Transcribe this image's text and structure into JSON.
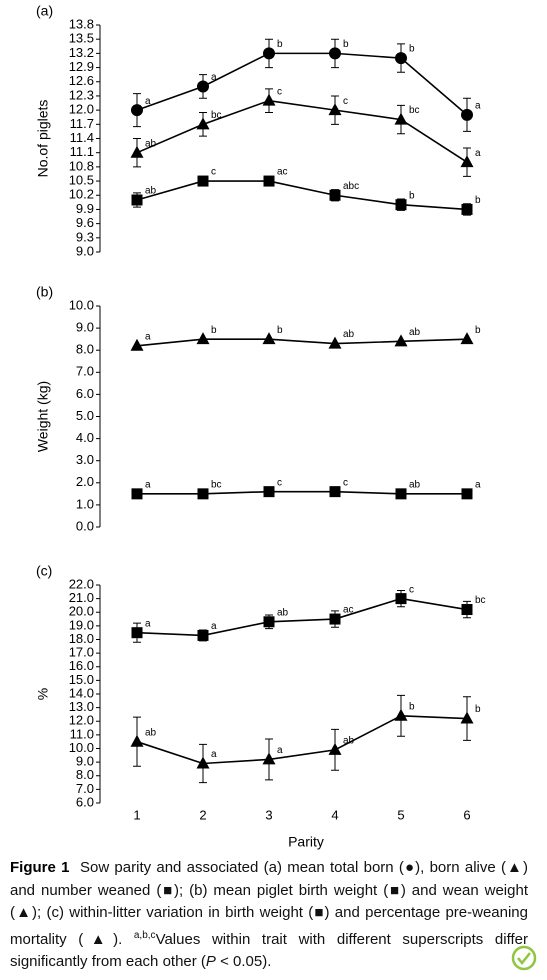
{
  "chart_data": [
    {
      "type": "line",
      "panel_label": "(a)",
      "y_label": "No.of piglets",
      "categories": [
        null,
        null,
        null,
        null,
        null,
        null
      ],
      "ylim": [
        9,
        13.8
      ],
      "yticks": [
        {
          "value": 9,
          "label": "9.0"
        },
        9.3,
        9.6,
        9.9,
        10.2,
        10.5,
        10.8,
        11.1,
        11.4,
        11.7,
        {
          "value": 12,
          "label": "12.0"
        },
        12.3,
        12.6,
        12.9,
        13.2,
        13.5,
        13.8
      ],
      "series": [
        {
          "marker": "circle",
          "color": "#000000",
          "values": [
            12.0,
            12.5,
            13.2,
            13.2,
            13.1,
            11.9
          ],
          "errors": [
            0.35,
            0.25,
            0.3,
            0.3,
            0.3,
            0.35
          ],
          "letters": [
            "a",
            "a",
            "b",
            "b",
            "b",
            "a"
          ]
        },
        {
          "marker": "triangle",
          "color": "#000000",
          "values": [
            11.1,
            11.7,
            12.2,
            12.0,
            11.8,
            10.9
          ],
          "errors": [
            0.3,
            0.25,
            0.25,
            0.3,
            0.3,
            0.3
          ],
          "letters": [
            "ab",
            "bc",
            "c",
            "c",
            "bc",
            "a"
          ]
        },
        {
          "marker": "square",
          "color": "#000000",
          "values": [
            10.1,
            10.5,
            10.5,
            10.2,
            10.0,
            9.9
          ],
          "errors": [
            0.15,
            0.1,
            0.1,
            0.12,
            0.12,
            0.12
          ],
          "letters": [
            "ab",
            "c",
            "ac",
            "abc",
            "b",
            "b"
          ]
        }
      ]
    },
    {
      "type": "line",
      "panel_label": "(b)",
      "y_label": "Weight (kg)",
      "categories": [
        null,
        null,
        null,
        null,
        null,
        null
      ],
      "ylim": [
        0,
        10
      ],
      "yticks": [
        {
          "value": 0,
          "label": "0.0"
        },
        {
          "value": 1,
          "label": "1.0"
        },
        {
          "value": 2,
          "label": "2.0"
        },
        {
          "value": 3,
          "label": "3.0"
        },
        {
          "value": 4,
          "label": "4.0"
        },
        {
          "value": 5,
          "label": "5.0"
        },
        {
          "value": 6,
          "label": "6.0"
        },
        {
          "value": 7,
          "label": "7.0"
        },
        {
          "value": 8,
          "label": "8.0"
        },
        {
          "value": 9,
          "label": "9.0"
        },
        {
          "value": 10,
          "label": "10.0"
        }
      ],
      "series": [
        {
          "marker": "triangle",
          "color": "#000000",
          "values": [
            8.2,
            8.5,
            8.5,
            8.3,
            8.4,
            8.5
          ],
          "letters": [
            "a",
            "b",
            "b",
            "ab",
            "ab",
            "b"
          ]
        },
        {
          "marker": "square",
          "color": "#000000",
          "values": [
            1.5,
            1.5,
            1.6,
            1.6,
            1.5,
            1.5
          ],
          "letters": [
            "a",
            "bc",
            "c",
            "c",
            "ab",
            "a"
          ]
        }
      ]
    },
    {
      "type": "line",
      "panel_label": "(c)",
      "y_label": "%",
      "x_label": "Parity",
      "categories": [
        "1",
        "2",
        "3",
        "4",
        "5",
        "6"
      ],
      "ylim": [
        6,
        22
      ],
      "yticks": [
        {
          "value": 6,
          "label": "6.0"
        },
        {
          "value": 7,
          "label": "7.0"
        },
        {
          "value": 8,
          "label": "8.0"
        },
        {
          "value": 9,
          "label": "9.0"
        },
        {
          "value": 10,
          "label": "10.0"
        },
        {
          "value": 11,
          "label": "11.0"
        },
        {
          "value": 12,
          "label": "12.0"
        },
        {
          "value": 13,
          "label": "13.0"
        },
        {
          "value": 14,
          "label": "14.0"
        },
        {
          "value": 15,
          "label": "15.0"
        },
        {
          "value": 16,
          "label": "16.0"
        },
        {
          "value": 17,
          "label": "17.0"
        },
        {
          "value": 18,
          "label": "18.0"
        },
        {
          "value": 19,
          "label": "19.0"
        },
        {
          "value": 20,
          "label": "20.0"
        },
        {
          "value": 21,
          "label": "21.0"
        },
        {
          "value": 22,
          "label": "22.0"
        }
      ],
      "series": [
        {
          "marker": "square",
          "color": "#000000",
          "values": [
            18.5,
            18.3,
            19.3,
            19.5,
            21.0,
            20.2
          ],
          "errors": [
            0.7,
            0.4,
            0.5,
            0.6,
            0.6,
            0.6
          ],
          "letters": [
            "a",
            "a",
            "ab",
            "ac",
            "c",
            "bc"
          ]
        },
        {
          "marker": "triangle",
          "color": "#000000",
          "values": [
            10.5,
            8.9,
            9.2,
            9.9,
            12.4,
            12.2
          ],
          "errors": [
            1.8,
            1.4,
            1.5,
            1.5,
            1.5,
            1.6
          ],
          "letters": [
            "ab",
            "a",
            "a",
            "ab",
            "b",
            "b"
          ]
        }
      ]
    }
  ],
  "caption": {
    "label": "Figure 1",
    "text": "Sow parity and associated (a) mean total born (●), born alive (▲) and number weaned (■); (b) mean piglet birth weight (■) and wean weight (▲); (c) within-litter variation in birth weight (■) and percentage pre-weaning mortality (▲). ",
    "superscript": "a,b,c",
    "text_after": "Values within trait with different superscripts differ significantly from each other (",
    "italic": "P",
    "text_end": " < 0.05)."
  }
}
